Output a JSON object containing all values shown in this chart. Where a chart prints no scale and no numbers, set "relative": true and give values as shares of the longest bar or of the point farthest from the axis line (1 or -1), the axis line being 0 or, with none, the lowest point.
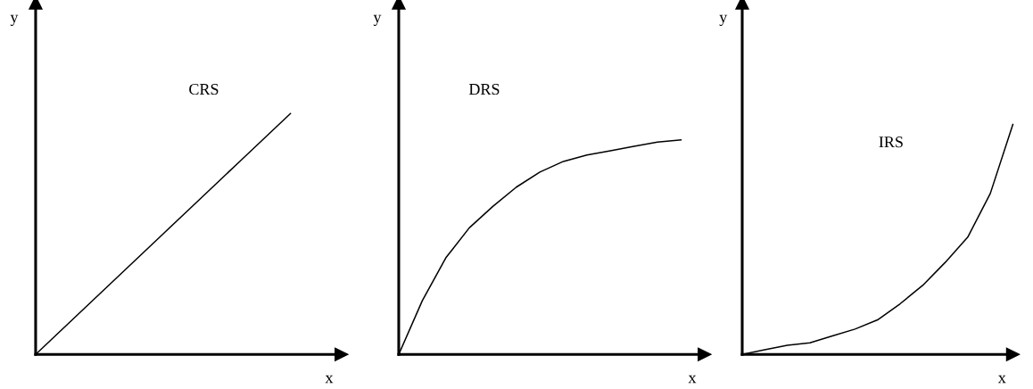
{
  "chart_data": [
    {
      "type": "line",
      "relative": true,
      "xlabel": "x",
      "ylabel": "y",
      "annotations": [
        "CRS"
      ],
      "grid": false,
      "marker": "none",
      "line_style": "solid",
      "categories": [
        null,
        null,
        null,
        null,
        null,
        null,
        null,
        null,
        null,
        null,
        null,
        null,
        null
      ],
      "series": [
        {
          "color": "#000000",
          "values": [
            0,
            0.1,
            0.2,
            0.3,
            0.4,
            0.5,
            0.6,
            0.7,
            0.8,
            0.9,
            1,
            null,
            null
          ]
        }
      ]
    },
    {
      "type": "line",
      "relative": true,
      "xlabel": "x",
      "ylabel": "y",
      "annotations": [
        "DRS"
      ],
      "grid": false,
      "marker": "none",
      "line_style": "solid",
      "categories": [
        null,
        null,
        null,
        null,
        null,
        null,
        null,
        null,
        null,
        null,
        null,
        null,
        null,
        null
      ],
      "series": [
        {
          "color": "#000000",
          "values": [
            0,
            0.25,
            0.45,
            0.59,
            0.69,
            0.78,
            0.85,
            0.9,
            0.93,
            0.95,
            0.97,
            0.99,
            1,
            null
          ]
        }
      ]
    },
    {
      "type": "line",
      "relative": true,
      "xlabel": "x",
      "ylabel": "y",
      "annotations": [
        "IRS"
      ],
      "grid": false,
      "marker": "none",
      "line_style": "solid",
      "categories": [
        null,
        null,
        null,
        null,
        null,
        null,
        null,
        null,
        null,
        null,
        null,
        null,
        null
      ],
      "series": [
        {
          "color": "#000000",
          "values": [
            0,
            0.02,
            0.04,
            0.05,
            0.08,
            0.11,
            0.15,
            0.22,
            0.3,
            0.4,
            0.51,
            0.7,
            1
          ]
        }
      ]
    }
  ]
}
